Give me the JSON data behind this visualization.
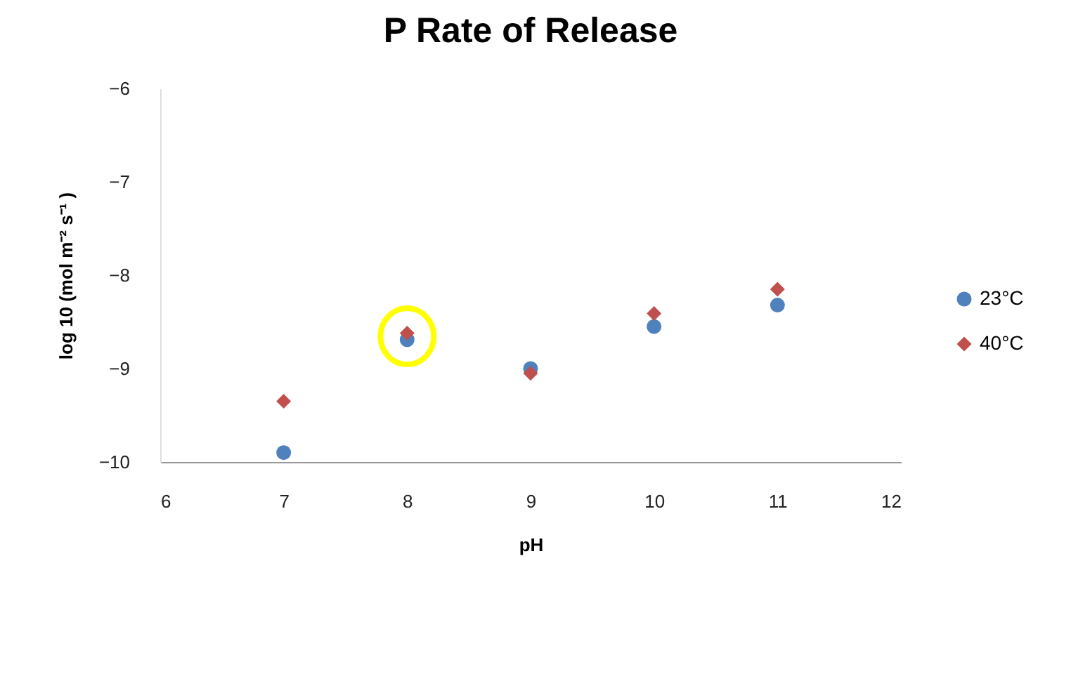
{
  "chart_data": {
    "type": "scatter",
    "title": "P Rate of Release",
    "xlabel": "pH",
    "ylabel": "log 10 (mol m⁻² s⁻¹ )",
    "x": [
      7,
      8,
      9,
      10,
      11
    ],
    "series": [
      {
        "name": "23°C",
        "color": "#4f81bd",
        "marker": "circle",
        "values": [
          -9.9,
          -8.69,
          -9.0,
          -8.55,
          -8.32
        ]
      },
      {
        "name": "40°C",
        "color": "#c0504d",
        "marker": "diamond",
        "values": [
          -9.35,
          -8.62,
          -9.05,
          -8.41,
          -8.15
        ]
      }
    ],
    "xlim": [
      6,
      12
    ],
    "xticks": [
      6,
      7,
      8,
      9,
      10,
      11,
      12
    ],
    "ylim": [
      -10,
      -6
    ],
    "yticks": [
      -10,
      -9,
      -8,
      -7,
      -6
    ],
    "grid": false,
    "legend": "right"
  }
}
